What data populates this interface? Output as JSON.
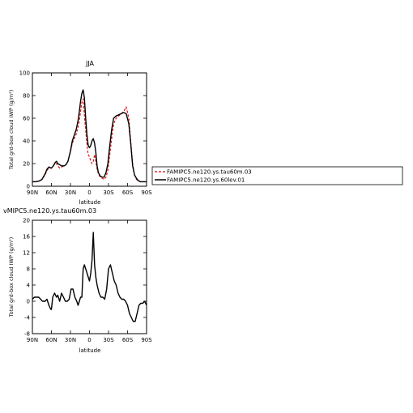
{
  "chart_data": [
    {
      "type": "line",
      "title": "JJA",
      "xlabel": "latitude",
      "ylabel": "Total grd-box cloud IWP (g/m²)",
      "xlim": [
        90,
        -90
      ],
      "ylim": [
        0,
        100
      ],
      "x_ticks": [
        {
          "value": 90,
          "label": "90N"
        },
        {
          "value": 60,
          "label": "60N"
        },
        {
          "value": 30,
          "label": "30N"
        },
        {
          "value": 0,
          "label": "0"
        },
        {
          "value": -30,
          "label": "30S"
        },
        {
          "value": -60,
          "label": "60S"
        },
        {
          "value": -90,
          "label": "90S"
        }
      ],
      "y_ticks": [
        0,
        20,
        40,
        60,
        80,
        100
      ],
      "x": [
        90,
        85,
        80,
        75,
        70,
        67,
        64,
        60,
        57,
        54,
        52,
        50,
        47,
        44,
        40,
        37,
        34,
        30,
        27,
        24,
        21,
        18,
        16,
        14,
        12,
        10,
        8,
        6,
        4,
        2,
        0,
        -2,
        -4,
        -6,
        -8,
        -10,
        -12,
        -14,
        -17,
        -20,
        -23,
        -26,
        -29,
        -32,
        -35,
        -38,
        -42,
        -46,
        -50,
        -54,
        -58,
        -62,
        -65,
        -68,
        -71,
        -74,
        -77,
        -80,
        -85,
        -90
      ],
      "series": [
        {
          "name": "FAMIPC5.ne120.ys.tau60m.03",
          "color": "#e00000",
          "dash": true,
          "values": [
            4,
            4,
            4.5,
            6,
            10,
            14,
            16,
            16,
            18,
            20,
            20,
            18,
            16,
            17,
            18,
            19,
            22,
            30,
            38,
            42,
            46,
            52,
            58,
            66,
            74,
            77,
            62,
            50,
            36,
            28,
            26,
            22,
            20,
            22,
            28,
            22,
            15,
            11,
            8,
            7,
            6,
            8,
            14,
            28,
            42,
            55,
            60,
            62,
            64,
            66,
            70,
            60,
            40,
            20,
            10,
            6,
            5,
            4,
            4,
            4
          ]
        },
        {
          "name": "FAMIPC5.ne120.ys.60lev.01",
          "color": "#000000",
          "dash": false,
          "values": [
            4,
            4,
            4.5,
            6,
            11,
            15,
            17,
            16,
            18,
            21,
            22,
            20,
            19,
            18,
            18,
            19,
            22,
            31,
            40,
            45,
            50,
            58,
            66,
            75,
            82,
            85,
            78,
            60,
            45,
            36,
            34,
            36,
            40,
            42,
            38,
            30,
            18,
            12,
            9,
            8,
            8,
            12,
            20,
            36,
            50,
            60,
            62,
            63,
            64,
            65,
            64,
            55,
            38,
            18,
            10,
            7,
            5,
            4,
            4,
            4
          ]
        }
      ]
    },
    {
      "type": "line",
      "title": "vMIPC5.ne120.ys.tau60m.03",
      "xlabel": "latitude",
      "ylabel": "Total grd-box cloud IWP (g/m²)",
      "xlim": [
        90,
        -90
      ],
      "ylim": [
        -8,
        20
      ],
      "x_ticks": [
        {
          "value": 90,
          "label": "90N"
        },
        {
          "value": 60,
          "label": "60N"
        },
        {
          "value": 30,
          "label": "30N"
        },
        {
          "value": 0,
          "label": "0"
        },
        {
          "value": -30,
          "label": "30S"
        },
        {
          "value": -60,
          "label": "60S"
        },
        {
          "value": -90,
          "label": "90S"
        }
      ],
      "y_ticks": [
        -8,
        -4,
        0,
        4,
        8,
        12,
        16,
        20
      ],
      "x": [
        90,
        87,
        84,
        80,
        77,
        74,
        70,
        67,
        64,
        61,
        60,
        58,
        55,
        52,
        50,
        47,
        44,
        41,
        38,
        35,
        32,
        29,
        26,
        23,
        20,
        18,
        16,
        14,
        12,
        10,
        8,
        6,
        4,
        2,
        0,
        -2,
        -4,
        -6,
        -8,
        -10,
        -12,
        -15,
        -18,
        -21,
        -24,
        -27,
        -30,
        -33,
        -36,
        -39,
        -42,
        -45,
        -48,
        -51,
        -54,
        -57,
        -60,
        -63,
        -66,
        -69,
        -72,
        -75,
        -78,
        -81,
        -84,
        -87,
        -90
      ],
      "series": [
        {
          "name": "",
          "color": "#000000",
          "dash": false,
          "values": [
            0.5,
            1,
            1,
            1,
            0.5,
            0,
            0,
            0.5,
            -1,
            -2,
            -2,
            1,
            2,
            1,
            1.5,
            0,
            2,
            1,
            0,
            0,
            0.5,
            3,
            3,
            1,
            0,
            -1,
            0,
            1,
            1,
            8,
            9,
            8,
            7,
            6,
            5,
            7,
            10,
            17,
            9,
            6,
            4,
            2,
            1,
            1,
            0.5,
            3,
            8,
            9,
            7,
            5,
            4,
            2,
            1,
            0.5,
            0.5,
            0,
            -1,
            -3,
            -4,
            -5,
            -5,
            -3,
            -1,
            -0.5,
            -0.5,
            0,
            -1
          ]
        }
      ]
    }
  ]
}
